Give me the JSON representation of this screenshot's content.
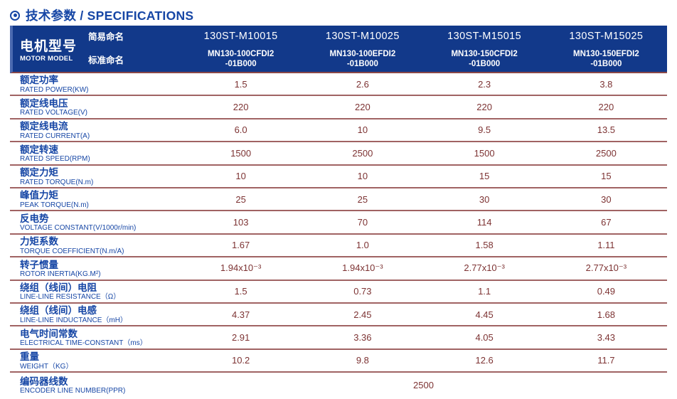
{
  "page": {
    "title": "技术参数 / SPECIFICATIONS"
  },
  "colors": {
    "header_bg": "#12398a",
    "header_accent_strip": "#4a69b0",
    "label_blue": "#1646a5",
    "value_maroon": "#7d3333",
    "separator_maroon": "#a06363"
  },
  "header": {
    "title_zh": "电机型号",
    "title_en": "MOTOR MODEL",
    "simple_name_label": "简易命名",
    "standard_name_label": "标准命名",
    "models": [
      {
        "simple": "130ST-M10015",
        "std1": "MN130-100CFDI2",
        "std2": "-01B000"
      },
      {
        "simple": "130ST-M10025",
        "std1": "MN130-100EFDI2",
        "std2": "-01B000"
      },
      {
        "simple": "130ST-M15015",
        "std1": "MN130-150CFDI2",
        "std2": "-01B000"
      },
      {
        "simple": "130ST-M15025",
        "std1": "MN130-150EFDI2",
        "std2": "-01B000"
      }
    ]
  },
  "rows": [
    {
      "zh": "额定功率",
      "en": "RATED POWER(KW)",
      "values": [
        "1.5",
        "2.6",
        "2.3",
        "3.8"
      ]
    },
    {
      "zh": "额定线电压",
      "en": "RATED VOLTAGE(V)",
      "values": [
        "220",
        "220",
        "220",
        "220"
      ]
    },
    {
      "zh": "额定线电流",
      "en": "RATED CURRENT(A)",
      "values": [
        "6.0",
        "10",
        "9.5",
        "13.5"
      ]
    },
    {
      "zh": "额定转速",
      "en": "RATED SPEED(RPM)",
      "values": [
        "1500",
        "2500",
        "1500",
        "2500"
      ]
    },
    {
      "zh": "额定力矩",
      "en": "RATED TORQUE(N.m)",
      "values": [
        "10",
        "10",
        "15",
        "15"
      ]
    },
    {
      "zh": "峰值力矩",
      "en": "PEAK TORQUE(N.m)",
      "values": [
        "25",
        "25",
        "30",
        "30"
      ]
    },
    {
      "zh": "反电势",
      "en": "VOLTAGE CONSTANT(V/1000r/min)",
      "values": [
        "103",
        "70",
        "114",
        "67"
      ]
    },
    {
      "zh": "力矩系数",
      "en": "TORQUE COEFFICIENT(N.m/A)",
      "values": [
        "1.67",
        "1.0",
        "1.58",
        "1.11"
      ]
    },
    {
      "zh": "转子惯量",
      "en": "ROTOR INERTIA(KG.M²)",
      "values": [
        "1.94x10⁻³",
        "1.94x10⁻³",
        "2.77x10⁻³",
        "2.77x10⁻³"
      ]
    },
    {
      "zh": "绕组（线间）电阻",
      "en": "LINE-LINE RESISTANCE（Ω）",
      "values": [
        "1.5",
        "0.73",
        "1.1",
        "0.49"
      ]
    },
    {
      "zh": "绕组（线间）电感",
      "en": "LINE-LINE INDUCTANCE（mH）",
      "values": [
        "4.37",
        "2.45",
        "4.45",
        "1.68"
      ]
    },
    {
      "zh": "电气时间常数",
      "en": "ELECTRICAL TIME-CONSTANT（ms）",
      "values": [
        "2.91",
        "3.36",
        "4.05",
        "3.43"
      ]
    },
    {
      "zh": "重量",
      "en": "WEIGHT（KG）",
      "values": [
        "10.2",
        "9.8",
        "12.6",
        "11.7"
      ]
    }
  ],
  "footer_row": {
    "zh": "编码器线数",
    "en": "ENCODER LINE NUMBER(PPR)",
    "value": "2500"
  }
}
